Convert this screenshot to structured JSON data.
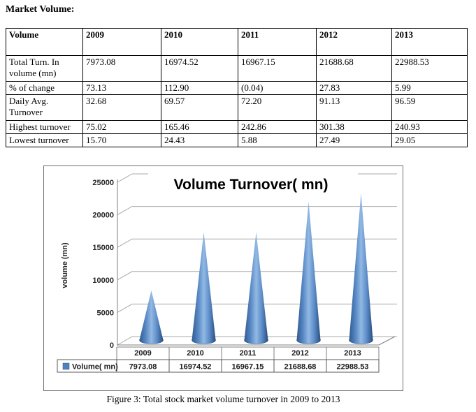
{
  "heading": "Market Volume:",
  "figure_caption": "Figure 3: Total stock market volume turnover in 2009 to 2013",
  "table": {
    "header": [
      "Volume",
      "2009",
      "2010",
      "2011",
      "2012",
      "2013"
    ],
    "rows": [
      {
        "label": "Total Turn. In volume (mn)",
        "values": [
          "7973.08",
          "16974.52",
          "16967.15",
          "21688.68",
          "22988.53"
        ]
      },
      {
        "label": "% of change",
        "values": [
          "73.13",
          "112.90",
          "(0.04)",
          "27.83",
          "5.99"
        ]
      },
      {
        "label": "Daily Avg. Turnover",
        "values": [
          "32.68",
          "69.57",
          "72.20",
          "91.13",
          "96.59"
        ]
      },
      {
        "label": "Highest turnover",
        "values": [
          "75.02",
          "165.46",
          "242.86",
          "301.38",
          "240.93"
        ]
      },
      {
        "label": "Lowest turnover",
        "values": [
          "15.70",
          "24.43",
          "5.88",
          "27.49",
          "29.05"
        ]
      }
    ]
  },
  "chart_data": {
    "type": "bar",
    "variant": "3d-cone",
    "title": "Volume Turnover( mn)",
    "ylabel": "volume (mn)",
    "xlabel": "",
    "categories": [
      "2009",
      "2010",
      "2011",
      "2012",
      "2013"
    ],
    "series": [
      {
        "name": "Volume( mn)",
        "values": [
          7973.08,
          16974.52,
          16967.15,
          21688.68,
          22988.53
        ]
      }
    ],
    "ylim": [
      0,
      25000
    ],
    "yticks": [
      0,
      5000,
      10000,
      15000,
      20000,
      25000
    ],
    "grid": true,
    "legend_position": "bottom-left-data-table",
    "colors": {
      "cone": "#4f81bd",
      "cone_dark": "#2f5687",
      "cone_light": "#92b9e4",
      "gridline": "#a8a8a8",
      "axis": "#7f7f7f",
      "frame": "#6e6e6e"
    }
  }
}
